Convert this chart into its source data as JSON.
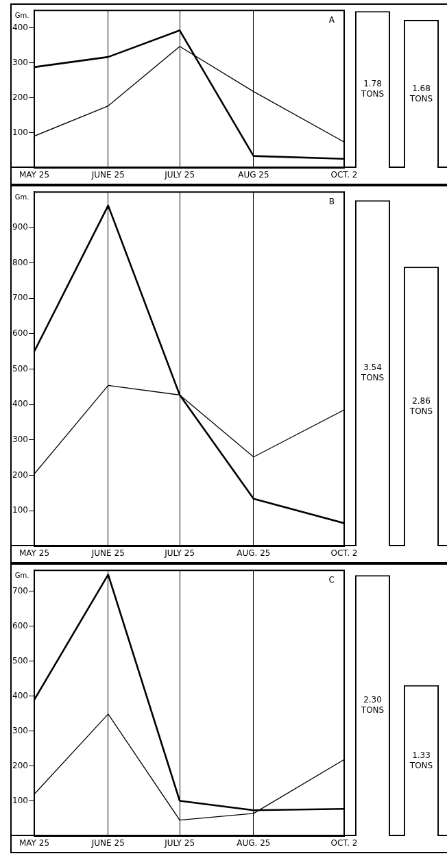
{
  "chart_data": [
    {
      "type": "line",
      "title": "A",
      "ylabel": "Gm.",
      "x": [
        "--05-25",
        "--06-25",
        "--07-25",
        "--08-25",
        "--10-02"
      ],
      "series": [
        {
          "color": "#000000",
          "values": [
            288,
            317,
            393,
            34,
            26
          ]
        },
        {
          "color": "#000000",
          "values": [
            91,
            177,
            347,
            218,
            74
          ]
        }
      ],
      "xlim": [
        "--05-25",
        "--10-02"
      ],
      "xticks": [
        {
          "value": "--05-25",
          "label": "MAY 25"
        },
        {
          "value": "--06-25",
          "label": "JUNE 25"
        },
        {
          "value": "--07-25",
          "label": "JULY 25"
        },
        {
          "value": "--08-25",
          "label": "AUG 25"
        },
        {
          "value": "--10-02",
          "label": "OCT. 2"
        }
      ],
      "ylim": [
        0,
        450
      ],
      "yticks": [
        100,
        200,
        300,
        400
      ],
      "grid": "x"
    },
    {
      "type": "bar",
      "categories": [
        null,
        null
      ],
      "values": [
        1.78,
        1.68
      ],
      "color": "#ffffff",
      "value_labels": [
        "1.78 TONS",
        "1.68 TONS"
      ],
      "tick_labels": false
    },
    {
      "type": "line",
      "title": "B",
      "ylabel": "Gm.",
      "x": [
        "--05-25",
        "--06-25",
        "--07-25",
        "--08-25",
        "--10-02"
      ],
      "series": [
        {
          "color": "#000000",
          "values": [
            550,
            962,
            427,
            134,
            65
          ]
        },
        {
          "color": "#000000",
          "values": [
            204,
            454,
            427,
            252,
            385
          ]
        }
      ],
      "xlim": [
        "--05-25",
        "--10-02"
      ],
      "xticks": [
        {
          "value": "--05-25",
          "label": "MAY 25"
        },
        {
          "value": "--06-25",
          "label": "JUNE 25"
        },
        {
          "value": "--07-25",
          "label": "JULY 25"
        },
        {
          "value": "--08-25",
          "label": "AUG. 25"
        },
        {
          "value": "--10-02",
          "label": "OCT. 2"
        }
      ],
      "ylim": [
        0,
        1000
      ],
      "yticks": [
        100,
        200,
        300,
        400,
        500,
        600,
        700,
        800,
        900
      ],
      "grid": "x"
    },
    {
      "type": "bar",
      "categories": [
        null,
        null
      ],
      "values": [
        3.54,
        2.86
      ],
      "color": "#ffffff",
      "value_labels": [
        "3.54 TONS",
        "2.86 TONS"
      ],
      "tick_labels": false
    },
    {
      "type": "line",
      "title": "C",
      "ylabel": "Gm.",
      "x": [
        "--05-25",
        "--06-25",
        "--07-25",
        "--08-25",
        "--10-02"
      ],
      "series": [
        {
          "color": "#000000",
          "values": [
            390,
            748,
            101,
            74,
            78
          ]
        },
        {
          "color": "#000000",
          "values": [
            120,
            349,
            46,
            65,
            219
          ]
        }
      ],
      "xlim": [
        "--05-25",
        "--10-02"
      ],
      "xticks": [
        {
          "value": "--05-25",
          "label": "MAY 25"
        },
        {
          "value": "--06-25",
          "label": "JUNE 25"
        },
        {
          "value": "--07-25",
          "label": "JULY 25"
        },
        {
          "value": "--08-25",
          "label": "AUG. 25"
        },
        {
          "value": "--10-02",
          "label": "OCT. 2"
        }
      ],
      "ylim": [
        0,
        760
      ],
      "yticks": [
        100,
        200,
        300,
        400,
        500,
        600,
        700
      ],
      "grid": "x"
    },
    {
      "type": "bar",
      "categories": [
        null,
        null
      ],
      "values": [
        2.3,
        1.33
      ],
      "color": "#ffffff",
      "value_labels": [
        "2.30 TONS",
        "1.33 TONS"
      ],
      "tick_labels": false
    }
  ]
}
